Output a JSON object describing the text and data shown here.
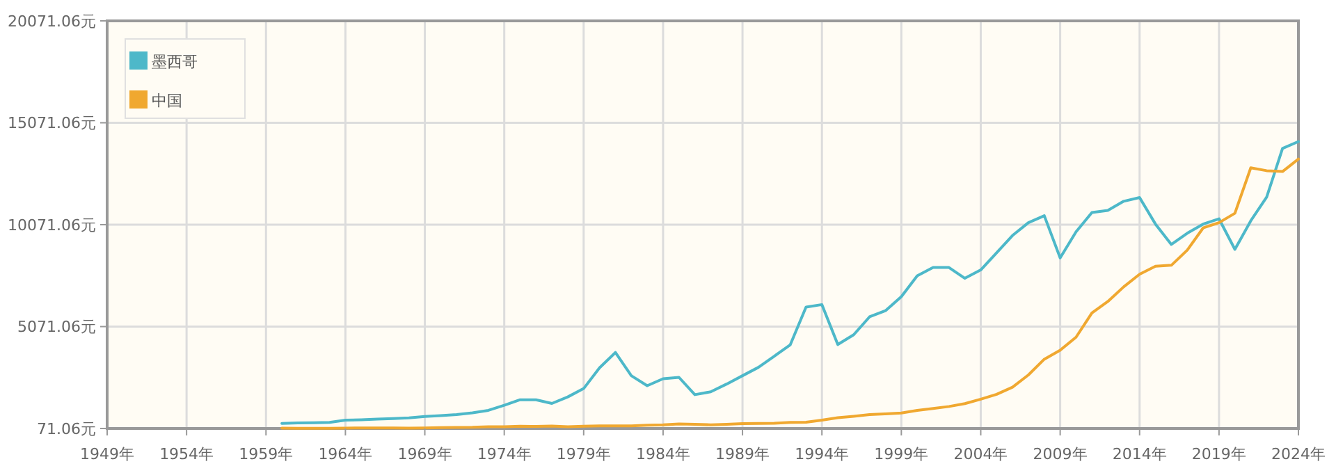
{
  "chart_data": {
    "type": "line",
    "x": [
      1960,
      1961,
      1962,
      1963,
      1964,
      1965,
      1966,
      1967,
      1968,
      1969,
      1970,
      1971,
      1972,
      1973,
      1974,
      1975,
      1976,
      1977,
      1978,
      1979,
      1980,
      1981,
      1982,
      1983,
      1984,
      1985,
      1986,
      1987,
      1988,
      1989,
      1990,
      1991,
      1992,
      1993,
      1994,
      1995,
      1996,
      1997,
      1998,
      1999,
      2000,
      2001,
      2002,
      2003,
      2004,
      2005,
      2006,
      2007,
      2008,
      2009,
      2010,
      2011,
      2012,
      2013,
      2014,
      2015,
      2016,
      2017,
      2018,
      2019,
      2020,
      2021,
      2022,
      2023,
      2024
    ],
    "series": [
      {
        "name": "墨西哥",
        "color": "#4db8c9",
        "values": [
          320,
          340,
          350,
          370,
          480,
          500,
          530,
          560,
          590,
          660,
          700,
          750,
          840,
          960,
          1210,
          1480,
          1480,
          1300,
          1620,
          2030,
          3050,
          3800,
          2660,
          2170,
          2510,
          2580,
          1730,
          1870,
          2250,
          2660,
          3070,
          3620,
          4170,
          6030,
          6150,
          4190,
          4670,
          5550,
          5850,
          6540,
          7560,
          7970,
          7970,
          7440,
          7850,
          8690,
          9540,
          10170,
          10510,
          8440,
          9720,
          10670,
          10770,
          11220,
          11400,
          10100,
          9100,
          9650,
          10100,
          10360,
          8860,
          10260,
          11420,
          13810,
          14150
        ]
      },
      {
        "name": "中国",
        "color": "#f0a830",
        "values": [
          90,
          80,
          80,
          80,
          90,
          100,
          100,
          100,
          90,
          100,
          110,
          120,
          130,
          160,
          160,
          180,
          170,
          190,
          160,
          180,
          200,
          200,
          200,
          230,
          250,
          290,
          280,
          250,
          280,
          310,
          320,
          330,
          370,
          380,
          480,
          600,
          670,
          750,
          790,
          830,
          960,
          1050,
          1150,
          1290,
          1510,
          1750,
          2100,
          2700,
          3470,
          3910,
          4550,
          5740,
          6300,
          7020,
          7640,
          8030,
          8080,
          8820,
          9910,
          10170,
          10630,
          12860,
          12720,
          12680,
          13290
        ]
      }
    ],
    "xlim": [
      1949,
      2024
    ],
    "xticks": [
      {
        "value": 1949,
        "label": "1949年"
      },
      {
        "value": 1954,
        "label": "1954年"
      },
      {
        "value": 1959,
        "label": "1959年"
      },
      {
        "value": 1964,
        "label": "1964年"
      },
      {
        "value": 1969,
        "label": "1969年"
      },
      {
        "value": 1974,
        "label": "1974年"
      },
      {
        "value": 1979,
        "label": "1979年"
      },
      {
        "value": 1984,
        "label": "1984年"
      },
      {
        "value": 1989,
        "label": "1989年"
      },
      {
        "value": 1994,
        "label": "1994年"
      },
      {
        "value": 1999,
        "label": "1999年"
      },
      {
        "value": 2004,
        "label": "2004年"
      },
      {
        "value": 2009,
        "label": "2009年"
      },
      {
        "value": 2014,
        "label": "2014年"
      },
      {
        "value": 2019,
        "label": "2019年"
      },
      {
        "value": 2024,
        "label": "2024年"
      }
    ],
    "ylim": [
      71.06,
      20071.06
    ],
    "yticks": [
      {
        "value": 71.06,
        "label": "71.06元"
      },
      {
        "value": 5071.06,
        "label": "5071.06元"
      },
      {
        "value": 10071.06,
        "label": "10071.06元"
      },
      {
        "value": 15071.06,
        "label": "15071.06元"
      },
      {
        "value": 20071.06,
        "label": "20071.06元"
      }
    ],
    "grid": true,
    "legend": "top left",
    "marker": "none",
    "line_style": "solid"
  }
}
